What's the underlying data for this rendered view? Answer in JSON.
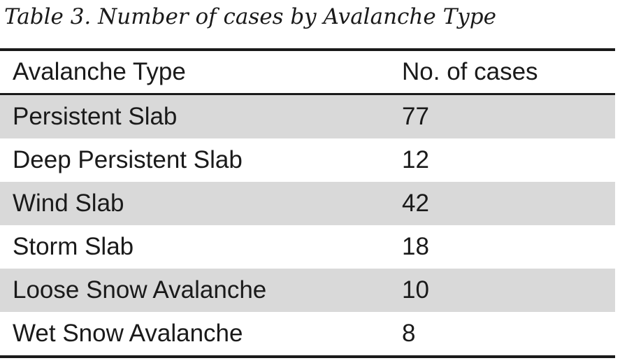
{
  "title": "Table 3. Number of cases by Avalanche Type",
  "table": {
    "header": [
      "Avalanche Type",
      "No. of cases"
    ],
    "rows": [
      [
        "Persistent Slab",
        77
      ],
      [
        "Deep Persistent Slab",
        12
      ],
      [
        "Wind Slab",
        42
      ],
      [
        "Storm Slab",
        18
      ],
      [
        "Loose Snow Avalanche",
        10
      ],
      [
        "Wet Snow Avalanche",
        8
      ]
    ]
  }
}
